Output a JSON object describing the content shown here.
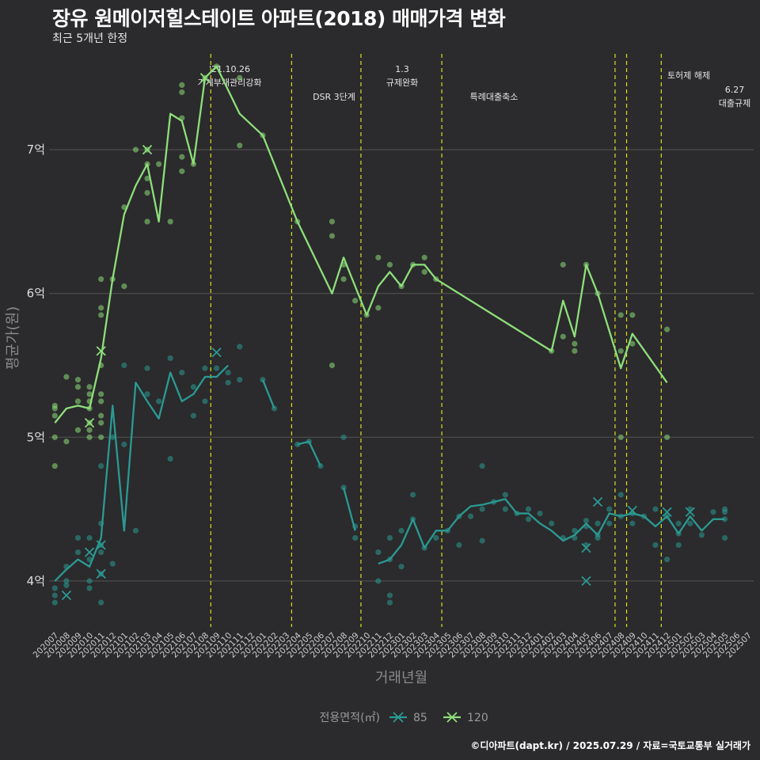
{
  "header": {
    "title": "장유 원메이저힐스테이트 아파트(2018) 매매가격 변화",
    "subtitle": "최근 5개년 한정"
  },
  "caption": "©디아파트(dapt.kr) / 2025.07.29 / 자료=국토교통부 실거래가",
  "colors": {
    "series_85": "#2a9a93",
    "series_120": "#8ddf7a",
    "event_line": "#d8e020",
    "background": "#2b2a2c",
    "grid": "#555555"
  },
  "chart_data": {
    "type": "line",
    "xlabel": "거래년월",
    "ylabel": "평균가(원)",
    "ylim": [
      3.68,
      7.7
    ],
    "yticks": [
      {
        "v": 4,
        "label": "4억"
      },
      {
        "v": 5,
        "label": "5억"
      },
      {
        "v": 6,
        "label": "6억"
      },
      {
        "v": 7,
        "label": "7억"
      }
    ],
    "categories": [
      "202007",
      "202008",
      "202009",
      "202010",
      "202011",
      "202012",
      "202101",
      "202102",
      "202103",
      "202104",
      "202105",
      "202106",
      "202107",
      "202108",
      "202109",
      "202110",
      "202111",
      "202112",
      "202201",
      "202202",
      "202203",
      "202204",
      "202205",
      "202206",
      "202207",
      "202208",
      "202209",
      "202210",
      "202211",
      "202212",
      "202301",
      "202302",
      "202303",
      "202304",
      "202305",
      "202306",
      "202307",
      "202308",
      "202309",
      "202310",
      "202311",
      "202312",
      "202401",
      "202402",
      "202403",
      "202404",
      "202405",
      "202406",
      "202407",
      "202408",
      "202409",
      "202410",
      "202411",
      "202412",
      "202501",
      "202502",
      "202503",
      "202504",
      "202505",
      "202506",
      "202507"
    ],
    "legend": {
      "title": "전용면적(㎡)",
      "position": "bottom"
    },
    "series": [
      {
        "name": "85",
        "line": [
          [
            0,
            4.0
          ],
          [
            1,
            4.08
          ],
          [
            2,
            4.15
          ],
          [
            3,
            4.1
          ],
          [
            4,
            4.3
          ],
          [
            5,
            5.22
          ],
          [
            6,
            4.35
          ],
          [
            7,
            5.38
          ],
          [
            8,
            5.25
          ],
          [
            9,
            5.13
          ],
          [
            10,
            5.45
          ],
          [
            11,
            5.25
          ],
          [
            12,
            5.3
          ],
          [
            13,
            5.42
          ],
          [
            14,
            5.42
          ],
          [
            15,
            5.5
          ],
          null,
          [
            18,
            5.4
          ],
          [
            19,
            5.2
          ],
          null,
          [
            21,
            4.95
          ],
          [
            22,
            4.97
          ],
          [
            23,
            4.8
          ],
          null,
          [
            25,
            4.65
          ],
          [
            26,
            4.35
          ],
          null,
          [
            28,
            4.12
          ],
          [
            29,
            4.15
          ],
          [
            30,
            4.25
          ],
          [
            31,
            4.43
          ],
          [
            32,
            4.23
          ],
          [
            33,
            4.35
          ],
          [
            34,
            4.35
          ],
          [
            35,
            4.45
          ],
          [
            36,
            4.52
          ],
          [
            37,
            4.53
          ],
          [
            38,
            4.55
          ],
          [
            39,
            4.57
          ],
          [
            40,
            4.47
          ],
          [
            41,
            4.47
          ],
          [
            42,
            4.4
          ],
          [
            43,
            4.35
          ],
          [
            44,
            4.28
          ],
          [
            45,
            4.32
          ],
          [
            46,
            4.4
          ],
          [
            47,
            4.32
          ],
          [
            48,
            4.47
          ],
          [
            49,
            4.45
          ],
          [
            50,
            4.47
          ],
          [
            51,
            4.45
          ],
          [
            52,
            4.38
          ],
          [
            53,
            4.45
          ],
          [
            54,
            4.33
          ],
          [
            55,
            4.45
          ],
          [
            56,
            4.35
          ],
          [
            57,
            4.43
          ],
          [
            58,
            4.43
          ]
        ],
        "points": [
          [
            0,
            3.95
          ],
          [
            0,
            3.9
          ],
          [
            0,
            3.85
          ],
          [
            1,
            4.0
          ],
          [
            1,
            4.1
          ],
          [
            1,
            3.97
          ],
          [
            2,
            4.2
          ],
          [
            2,
            4.3
          ],
          [
            3,
            4.0
          ],
          [
            3,
            3.95
          ],
          [
            3,
            4.3
          ],
          [
            3,
            4.15
          ],
          [
            4,
            4.4
          ],
          [
            4,
            4.2
          ],
          [
            4,
            4.05
          ],
          [
            4,
            4.8
          ],
          [
            4,
            3.85
          ],
          [
            4,
            4.25
          ],
          [
            5,
            4.12
          ],
          [
            5,
            5.0
          ],
          [
            6,
            4.95
          ],
          [
            6,
            5.5
          ],
          [
            7,
            4.35
          ],
          [
            8,
            5.3
          ],
          [
            8,
            5.48
          ],
          [
            9,
            5.25
          ],
          [
            10,
            5.55
          ],
          [
            10,
            4.85
          ],
          [
            11,
            5.45
          ],
          [
            12,
            5.15
          ],
          [
            12,
            5.35
          ],
          [
            13,
            5.25
          ],
          [
            13,
            5.48
          ],
          [
            14,
            5.48
          ],
          [
            15,
            5.38
          ],
          [
            15,
            5.45
          ],
          [
            16,
            5.4
          ],
          [
            16,
            5.63
          ],
          [
            18,
            5.4
          ],
          [
            19,
            5.2
          ],
          [
            21,
            4.95
          ],
          [
            22,
            4.97
          ],
          [
            23,
            4.8
          ],
          [
            25,
            5.0
          ],
          [
            25,
            4.65
          ],
          [
            26,
            4.3
          ],
          [
            26,
            4.38
          ],
          [
            28,
            4.0
          ],
          [
            28,
            4.2
          ],
          [
            29,
            3.85
          ],
          [
            29,
            3.9
          ],
          [
            29,
            4.3
          ],
          [
            29,
            4.15
          ],
          [
            30,
            4.1
          ],
          [
            30,
            4.35
          ],
          [
            31,
            4.6
          ],
          [
            31,
            4.43
          ],
          [
            32,
            4.23
          ],
          [
            33,
            4.3
          ],
          [
            34,
            4.35
          ],
          [
            35,
            4.25
          ],
          [
            35,
            4.45
          ],
          [
            36,
            4.45
          ],
          [
            37,
            4.5
          ],
          [
            37,
            4.8
          ],
          [
            37,
            4.28
          ],
          [
            38,
            4.55
          ],
          [
            39,
            4.6
          ],
          [
            39,
            4.5
          ],
          [
            40,
            4.47
          ],
          [
            41,
            4.5
          ],
          [
            41,
            4.43
          ],
          [
            42,
            4.47
          ],
          [
            43,
            4.4
          ],
          [
            44,
            4.3
          ],
          [
            45,
            4.3
          ],
          [
            45,
            4.35
          ],
          [
            46,
            4.25
          ],
          [
            46,
            4.42
          ],
          [
            46,
            4.38
          ],
          [
            47,
            4.32
          ],
          [
            47,
            4.4
          ],
          [
            47,
            4.3
          ],
          [
            48,
            4.5
          ],
          [
            48,
            4.4
          ],
          [
            49,
            4.45
          ],
          [
            49,
            4.6
          ],
          [
            50,
            4.4
          ],
          [
            50,
            4.47
          ],
          [
            51,
            4.45
          ],
          [
            52,
            4.5
          ],
          [
            52,
            4.25
          ],
          [
            53,
            4.45
          ],
          [
            53,
            4.15
          ],
          [
            54,
            4.33
          ],
          [
            54,
            4.4
          ],
          [
            54,
            4.25
          ],
          [
            55,
            4.5
          ],
          [
            55,
            4.4
          ],
          [
            56,
            4.32
          ],
          [
            57,
            4.48
          ],
          [
            58,
            4.43
          ],
          [
            58,
            4.3
          ],
          [
            58,
            4.48
          ],
          [
            58,
            4.5
          ]
        ],
        "crosses": [
          [
            1,
            3.9
          ],
          [
            3,
            4.2
          ],
          [
            4,
            4.05
          ],
          [
            4,
            4.25
          ],
          [
            14,
            5.59
          ],
          [
            46,
            4.0
          ],
          [
            46,
            4.23
          ],
          [
            47,
            4.55
          ],
          [
            50,
            4.49
          ],
          [
            53,
            4.48
          ],
          [
            55,
            4.48
          ]
        ]
      },
      {
        "name": "120",
        "line": [
          [
            0,
            5.1
          ],
          [
            1,
            5.2
          ],
          [
            2,
            5.22
          ],
          [
            3,
            5.2
          ],
          [
            4,
            5.55
          ],
          [
            5,
            6.1
          ],
          [
            6,
            6.55
          ],
          [
            7,
            6.75
          ],
          [
            8,
            6.9
          ],
          [
            9,
            6.5
          ],
          [
            10,
            7.25
          ],
          [
            11,
            7.2
          ],
          [
            12,
            6.9
          ],
          [
            13,
            7.5
          ],
          [
            14,
            7.58
          ],
          [
            16,
            7.25
          ],
          [
            18,
            7.1
          ],
          [
            21,
            6.5
          ],
          [
            24,
            6.0
          ],
          [
            25,
            6.25
          ],
          [
            26,
            6.05
          ],
          [
            27,
            5.85
          ],
          [
            28,
            6.05
          ],
          [
            29,
            6.15
          ],
          [
            30,
            6.05
          ],
          [
            31,
            6.2
          ],
          [
            32,
            6.2
          ],
          [
            33,
            6.1
          ],
          [
            43,
            5.6
          ],
          [
            44,
            5.95
          ],
          [
            45,
            5.7
          ],
          [
            46,
            6.2
          ],
          [
            47,
            6.0
          ],
          [
            49,
            5.48
          ],
          [
            50,
            5.72
          ],
          [
            53,
            5.38
          ]
        ],
        "points": [
          [
            0,
            5.2
          ],
          [
            0,
            5.15
          ],
          [
            0,
            5.0
          ],
          [
            0,
            4.8
          ],
          [
            0,
            5.22
          ],
          [
            1,
            5.42
          ],
          [
            1,
            4.97
          ],
          [
            2,
            5.25
          ],
          [
            2,
            5.05
          ],
          [
            2,
            5.35
          ],
          [
            2,
            5.4
          ],
          [
            3,
            5.1
          ],
          [
            3,
            5.25
          ],
          [
            3,
            5.2
          ],
          [
            3,
            5.3
          ],
          [
            3,
            5.0
          ],
          [
            3,
            5.05
          ],
          [
            3,
            5.35
          ],
          [
            4,
            5.5
          ],
          [
            4,
            5.0
          ],
          [
            4,
            5.1
          ],
          [
            4,
            5.3
          ],
          [
            4,
            5.25
          ],
          [
            4,
            6.1
          ],
          [
            4,
            5.9
          ],
          [
            4,
            5.85
          ],
          [
            4,
            5.15
          ],
          [
            5,
            6.1
          ],
          [
            6,
            6.6
          ],
          [
            6,
            6.05
          ],
          [
            7,
            7.0
          ],
          [
            8,
            6.9
          ],
          [
            8,
            6.5
          ],
          [
            8,
            6.8
          ],
          [
            8,
            6.7
          ],
          [
            8,
            7.0
          ],
          [
            9,
            6.9
          ],
          [
            10,
            6.5
          ],
          [
            11,
            7.45
          ],
          [
            11,
            6.95
          ],
          [
            11,
            7.4
          ],
          [
            11,
            7.22
          ],
          [
            11,
            6.85
          ],
          [
            12,
            6.9
          ],
          [
            13,
            7.5
          ],
          [
            14,
            7.58
          ],
          [
            16,
            7.5
          ],
          [
            16,
            7.03
          ],
          [
            18,
            7.1
          ],
          [
            21,
            6.5
          ],
          [
            24,
            5.5
          ],
          [
            24,
            6.5
          ],
          [
            24,
            6.4
          ],
          [
            25,
            6.1
          ],
          [
            25,
            6.2
          ],
          [
            26,
            5.95
          ],
          [
            27,
            5.85
          ],
          [
            28,
            6.25
          ],
          [
            28,
            5.9
          ],
          [
            29,
            6.2
          ],
          [
            30,
            6.05
          ],
          [
            31,
            6.2
          ],
          [
            32,
            6.15
          ],
          [
            32,
            6.25
          ],
          [
            33,
            6.1
          ],
          [
            43,
            5.6
          ],
          [
            44,
            5.7
          ],
          [
            44,
            6.2
          ],
          [
            45,
            5.65
          ],
          [
            45,
            5.6
          ],
          [
            46,
            6.2
          ],
          [
            47,
            6.0
          ],
          [
            49,
            5.0
          ],
          [
            49,
            5.6
          ],
          [
            49,
            5.85
          ],
          [
            50,
            5.85
          ],
          [
            50,
            5.65
          ],
          [
            53,
            5.75
          ],
          [
            53,
            5.0
          ]
        ],
        "crosses": [
          [
            3,
            5.1
          ],
          [
            4,
            5.6
          ],
          [
            8,
            7.0
          ],
          [
            13,
            7.5
          ]
        ]
      }
    ],
    "events": [
      {
        "x": 13.5,
        "label": "'21.10.26\n가계부채관리강화"
      },
      {
        "x": 20.5,
        "label": "DSR 3단계"
      },
      {
        "x": 26.5,
        "label": "1.3\n규제완화"
      },
      {
        "x": 33.5,
        "label": "특례대출축소"
      },
      {
        "x": 48.5,
        "label": "토허제 해제"
      },
      {
        "x": 49.5,
        "label": ""
      },
      {
        "x": 52.5,
        "label": "6.27\n대출규제"
      }
    ]
  }
}
